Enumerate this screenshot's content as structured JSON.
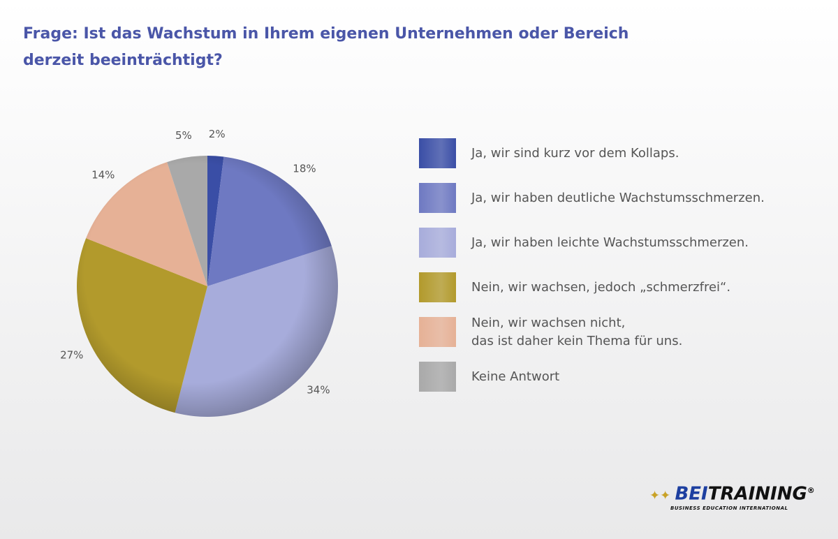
{
  "chart_data": {
    "type": "pie",
    "title": "Frage: Ist das Wachstum in Ihrem eigenen Unternehmen oder Bereich\nderzeit beeinträchtigt?",
    "categories": [
      "Ja, wir sind kurz vor dem Kollaps.",
      "Ja, wir haben deutliche Wachstumsschmerzen.",
      "Ja, wir haben leichte Wachstumsschmerzen.",
      "Nein, wir wachsen, jedoch „schmerzfrei“.",
      "Nein, wir wachsen nicht,\ndas ist daher kein Thema für uns.",
      "Keine Antwort"
    ],
    "values": [
      2,
      18,
      34,
      27,
      14,
      5
    ],
    "value_labels": [
      "2%",
      "18%",
      "34%",
      "27%",
      "14%",
      "5%"
    ],
    "colors": [
      "#3a4ea6",
      "#6e79c2",
      "#a7acdb",
      "#b29a2c",
      "#e6b196",
      "#a9a9a9"
    ]
  },
  "logo": {
    "part1": "BEI",
    "part2": "TRAINING",
    "mark": "®",
    "tagline": "BUSINESS EDUCATION INTERNATIONAL"
  }
}
